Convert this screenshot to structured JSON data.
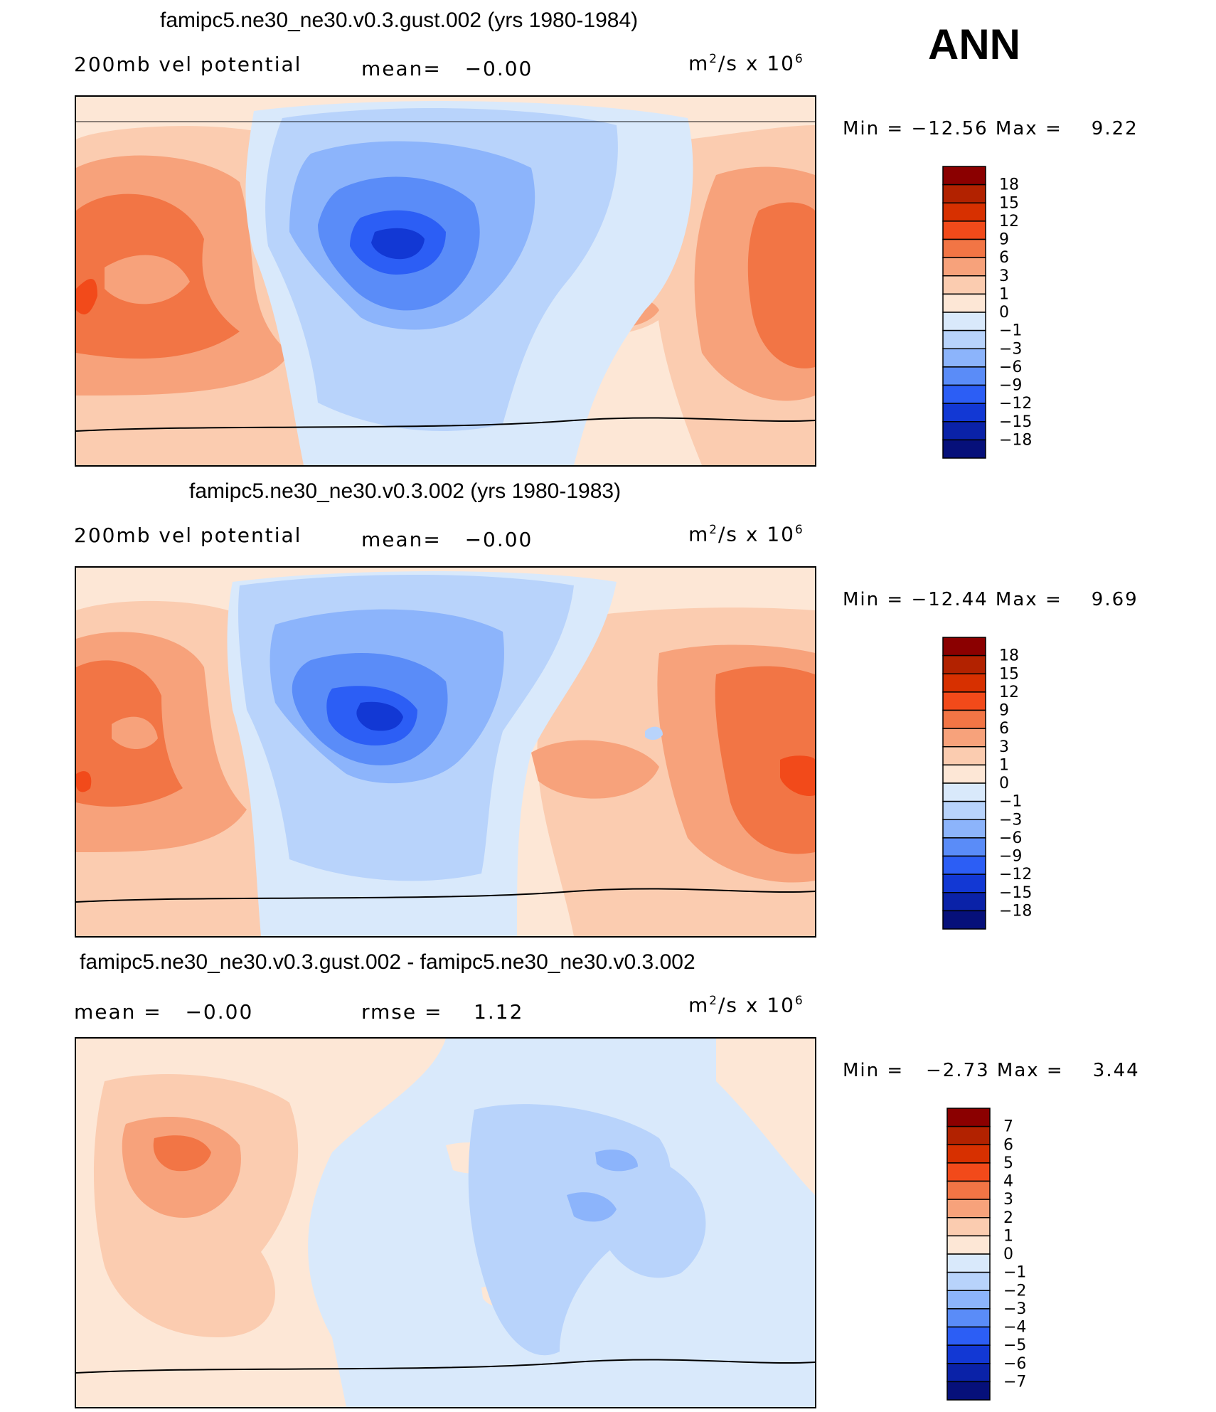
{
  "season": "ANN",
  "panels": [
    {
      "title": "famipc5.ne30_ne30.v0.3.gust.002 (yrs 1980-1984)",
      "left_label": "200mb vel potential",
      "mid_label": "mean=   −0.00",
      "units_base": "m",
      "units_exp": "2",
      "units_rest": "/s x 10",
      "units_exp2": "6",
      "stats": "Min = −12.56 Max =    9.22"
    },
    {
      "title": "famipc5.ne30_ne30.v0.3.002 (yrs 1980-1983)",
      "left_label": "200mb vel potential",
      "mid_label": "mean=   −0.00",
      "units_base": "m",
      "units_exp": "2",
      "units_rest": "/s x 10",
      "units_exp2": "6",
      "stats": "Min = −12.44 Max =    9.69"
    },
    {
      "title": "famipc5.ne30_ne30.v0.3.gust.002 - famipc5.ne30_ne30.v0.3.002",
      "left_label": "mean =   −0.00",
      "mid_label": "rmse =    1.12",
      "units_base": "m",
      "units_exp": "2",
      "units_rest": "/s x 10",
      "units_exp2": "6",
      "stats": "Min =   −2.73 Max =    3.44"
    }
  ],
  "chart_data": [
    {
      "type": "heatmap",
      "title": "famipc5.ne30_ne30.v0.3.gust.002 (yrs 1980-1984)",
      "variable": "200mb vel potential",
      "units": "m2/s x 10^6",
      "mean": -0.0,
      "min": -12.56,
      "max": 9.22,
      "colorbar_levels": [
        "18",
        "15",
        "12",
        "9",
        "6",
        "3",
        "1",
        "0",
        "−1",
        "−3",
        "−6",
        "−9",
        "−12",
        "−15",
        "−18"
      ],
      "colorbar_colors": [
        "#8b0000",
        "#b22200",
        "#d73000",
        "#f24a1a",
        "#f27545",
        "#f7a27b",
        "#fbccb0",
        "#fde7d6",
        "#d9e9fb",
        "#b8d3fb",
        "#8cb4fb",
        "#5a8cf8",
        "#2c5ef5",
        "#1238d4",
        "#0a22a8",
        "#06107a"
      ]
    },
    {
      "type": "heatmap",
      "title": "famipc5.ne30_ne30.v0.3.002 (yrs 1980-1983)",
      "variable": "200mb vel potential",
      "units": "m2/s x 10^6",
      "mean": -0.0,
      "min": -12.44,
      "max": 9.69,
      "colorbar_levels": [
        "18",
        "15",
        "12",
        "9",
        "6",
        "3",
        "1",
        "0",
        "−1",
        "−3",
        "−6",
        "−9",
        "−12",
        "−15",
        "−18"
      ],
      "colorbar_colors": [
        "#8b0000",
        "#b22200",
        "#d73000",
        "#f24a1a",
        "#f27545",
        "#f7a27b",
        "#fbccb0",
        "#fde7d6",
        "#d9e9fb",
        "#b8d3fb",
        "#8cb4fb",
        "#5a8cf8",
        "#2c5ef5",
        "#1238d4",
        "#0a22a8",
        "#06107a"
      ]
    },
    {
      "type": "heatmap",
      "title": "famipc5.ne30_ne30.v0.3.gust.002 - famipc5.ne30_ne30.v0.3.002",
      "units": "m2/s x 10^6",
      "mean": -0.0,
      "rmse": 1.12,
      "min": -2.73,
      "max": 3.44,
      "colorbar_levels": [
        "7",
        "6",
        "5",
        "4",
        "3",
        "2",
        "1",
        "0",
        "−1",
        "−2",
        "−3",
        "−4",
        "−5",
        "−6",
        "−7"
      ],
      "colorbar_colors": [
        "#8b0000",
        "#b22200",
        "#d73000",
        "#f24a1a",
        "#f27545",
        "#f7a27b",
        "#fbccb0",
        "#fde7d6",
        "#d9e9fb",
        "#b8d3fb",
        "#8cb4fb",
        "#5a8cf8",
        "#2c5ef5",
        "#1238d4",
        "#0a22a8",
        "#06107a"
      ]
    }
  ]
}
